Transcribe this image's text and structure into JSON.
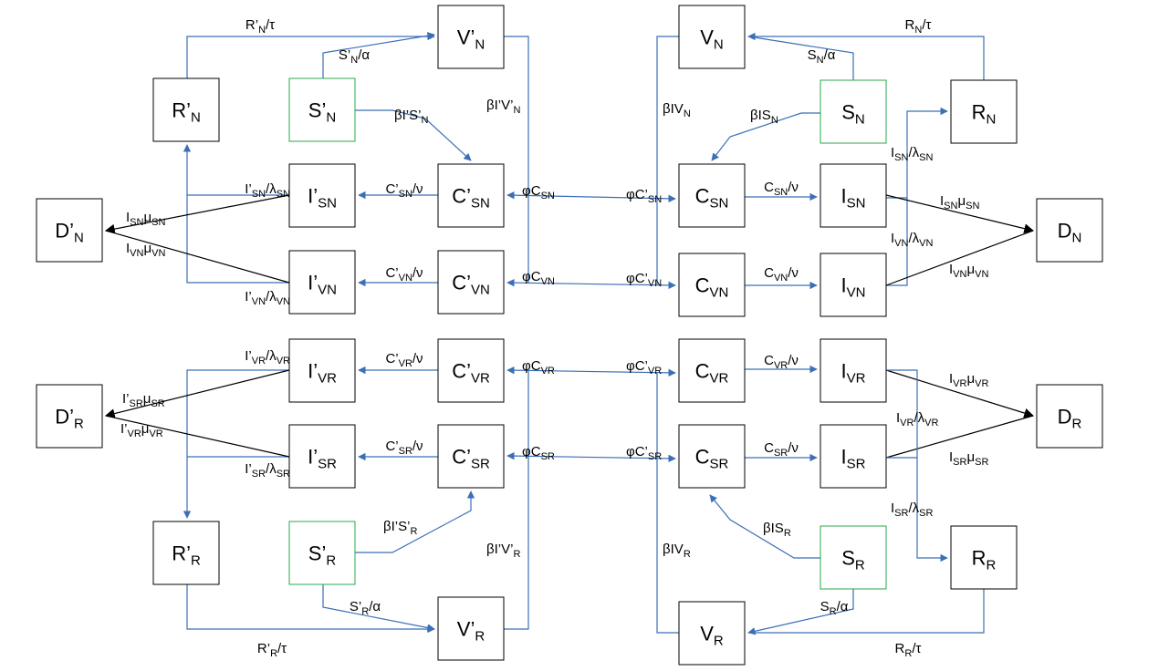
{
  "nodes": {
    "Vp_N": {
      "main": "V’",
      "sub": "N"
    },
    "Rp_N": {
      "main": "R’",
      "sub": "N"
    },
    "Sp_N": {
      "main": "S’",
      "sub": "N"
    },
    "Dp_N": {
      "main": "D’",
      "sub": "N"
    },
    "Ip_SN": {
      "main": "I’",
      "sub": "SN"
    },
    "Cp_SN": {
      "main": "C’",
      "sub": "SN"
    },
    "Ip_VN": {
      "main": "I’",
      "sub": "VN"
    },
    "Cp_VN": {
      "main": "C’",
      "sub": "VN"
    },
    "V_N": {
      "main": "V",
      "sub": "N"
    },
    "S_N": {
      "main": "S",
      "sub": "N"
    },
    "R_N": {
      "main": "R",
      "sub": "N"
    },
    "C_SN": {
      "main": "C",
      "sub": "SN"
    },
    "I_SN": {
      "main": "I",
      "sub": "SN"
    },
    "D_N": {
      "main": "D",
      "sub": "N"
    },
    "C_VN": {
      "main": "C",
      "sub": "VN"
    },
    "I_VN": {
      "main": "I",
      "sub": "VN"
    },
    "Ip_VR": {
      "main": "I’",
      "sub": "VR"
    },
    "Cp_VR": {
      "main": "C’",
      "sub": "VR"
    },
    "Dp_R": {
      "main": "D’",
      "sub": "R"
    },
    "Ip_SR": {
      "main": "I’",
      "sub": "SR"
    },
    "Cp_SR": {
      "main": "C’",
      "sub": "SR"
    },
    "Rp_R": {
      "main": "R’",
      "sub": "R"
    },
    "Sp_R": {
      "main": "S’",
      "sub": "R"
    },
    "Vp_R": {
      "main": "V’",
      "sub": "R"
    },
    "C_VR": {
      "main": "C",
      "sub": "VR"
    },
    "I_VR": {
      "main": "I",
      "sub": "VR"
    },
    "D_R": {
      "main": "D",
      "sub": "R"
    },
    "C_SR": {
      "main": "C",
      "sub": "SR"
    },
    "I_SR": {
      "main": "I",
      "sub": "SR"
    },
    "R_R": {
      "main": "R",
      "sub": "R"
    },
    "S_R": {
      "main": "S",
      "sub": "R"
    },
    "V_R": {
      "main": "V",
      "sub": "R"
    }
  },
  "edge_labels": {
    "Rp_N_to_Vp_N": [
      "R’",
      "N",
      "/τ"
    ],
    "Sp_N_to_Vp_N": [
      "S’",
      "N",
      "/α"
    ],
    "Sp_N_to_Cp_SN": [
      "βI’S’",
      "N",
      ""
    ],
    "Vp_N_out": [
      "βI’V’",
      "N",
      ""
    ],
    "Ip_SN_to_Rp_N": [
      "I’",
      "SN",
      "/λ",
      "SN",
      ""
    ],
    "Cp_SN_to_Ip_SN": [
      "C’",
      "SN",
      "/ν"
    ],
    "Ip_SN_to_Dp_N": [
      "I",
      "SN",
      "μ",
      "SN",
      ""
    ],
    "Ip_VN_to_Dp_N": [
      "I",
      "VN",
      "μ",
      "VN",
      ""
    ],
    "Ip_VN_to_Rp_N": [
      "I’",
      "VN",
      "/λ",
      "VN",
      ""
    ],
    "Cp_VN_to_Ip_VN": [
      "C’",
      "VN",
      "/ν"
    ],
    "phi_Cp_SN_left": [
      "φC",
      "SN",
      ""
    ],
    "phi_Cp_VN_left": [
      "φC",
      "VN",
      ""
    ],
    "R_N_to_V_N": [
      "R",
      "N",
      "/τ"
    ],
    "S_N_to_V_N": [
      "S",
      "N",
      "/α"
    ],
    "V_N_out": [
      "βIV",
      "N",
      ""
    ],
    "S_N_to_C_SN": [
      "βIS",
      "N",
      ""
    ],
    "I_SN_to_R_N": [
      "I",
      "SN",
      "/λ",
      "SN",
      ""
    ],
    "phi_C_SN_right": [
      "φC’",
      "SN",
      ""
    ],
    "C_SN_to_I_SN": [
      "C",
      "SN",
      "/ν"
    ],
    "I_SN_to_D_N": [
      "I",
      "SN",
      "μ",
      "SN",
      ""
    ],
    "I_VN_to_R_N": [
      "I",
      "VN",
      "/λ",
      "VN",
      ""
    ],
    "phi_C_VN_right": [
      "φC’",
      "VN",
      ""
    ],
    "C_VN_to_I_VN": [
      "C",
      "VN",
      "/ν"
    ],
    "I_VN_to_D_N": [
      "I",
      "VN",
      "μ",
      "VN",
      ""
    ],
    "Ip_VR_to_Rp_R": [
      "I’",
      "VR",
      "/λ",
      "VR",
      ""
    ],
    "Cp_VR_to_Ip_VR": [
      "C’",
      "VR",
      "/ν"
    ],
    "phi_Cp_VR_left": [
      "φC",
      "VR",
      ""
    ],
    "Ip_SR_to_Dp_R": [
      "I’",
      "SR",
      "μ",
      "SR",
      ""
    ],
    "Ip_VR_to_Dp_R": [
      "I’",
      "VR",
      "μ",
      "VR",
      ""
    ],
    "Cp_SR_to_Ip_SR": [
      "C’",
      "SR",
      "/ν"
    ],
    "phi_Cp_SR_left": [
      "φC",
      "SR",
      ""
    ],
    "Ip_SR_to_Rp_R": [
      "I’",
      "SR",
      "/λ",
      "SR",
      ""
    ],
    "Sp_R_to_Cp_SR": [
      "βI’S’",
      "R",
      ""
    ],
    "Vp_R_out": [
      "βI’V’",
      "R",
      ""
    ],
    "Sp_R_to_Vp_R": [
      "S’",
      "R",
      "/α"
    ],
    "Rp_R_to_Vp_R": [
      "R’",
      "R",
      "/τ"
    ],
    "phi_C_VR_right": [
      "φC’",
      "VR",
      ""
    ],
    "C_VR_to_I_VR": [
      "C",
      "VR",
      "/ν"
    ],
    "I_VR_to_D_R": [
      "I",
      "VR",
      "μ",
      "VR",
      ""
    ],
    "I_VR_to_R_R": [
      "I",
      "VR",
      "/λ",
      "VR",
      ""
    ],
    "phi_C_SR_right": [
      "φC’",
      "SR",
      ""
    ],
    "C_SR_to_I_SR": [
      "C",
      "SR",
      "/ν"
    ],
    "I_SR_to_D_R": [
      "I",
      "SR",
      "μ",
      "SR",
      ""
    ],
    "I_SR_to_R_R": [
      "I",
      "SR",
      "/λ",
      "SR",
      ""
    ],
    "S_R_to_C_SR": [
      "βIS",
      "R",
      ""
    ],
    "V_R_out": [
      "βIV",
      "R",
      ""
    ],
    "S_R_to_V_R": [
      "S",
      "R",
      "/α"
    ],
    "R_R_to_V_R": [
      "R",
      "R",
      "/τ"
    ]
  },
  "colors": {
    "edge": "#3b6fb6",
    "box_border": "#000000",
    "susceptible_border": "#2aa84a",
    "death_arrow": "#000000"
  }
}
